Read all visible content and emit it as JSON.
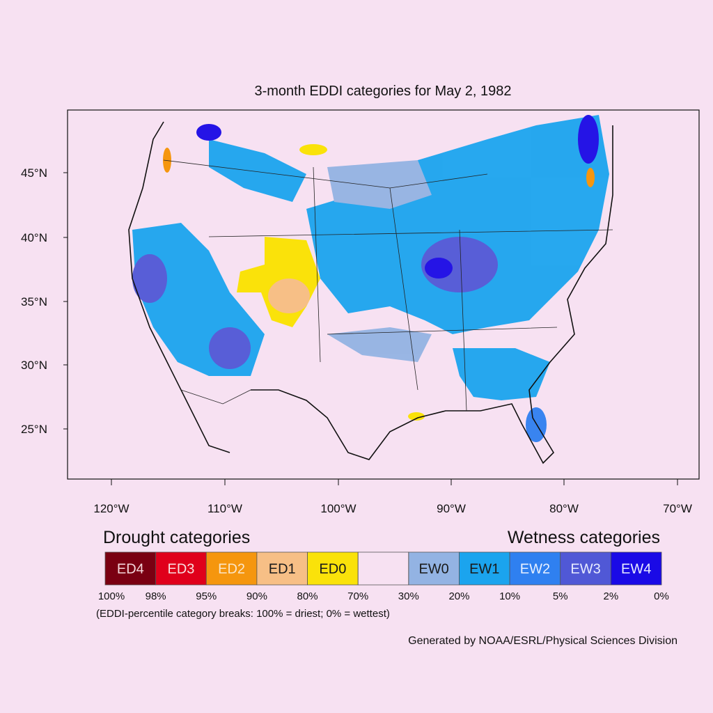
{
  "title": "3-month EDDI categories for May 2, 1982",
  "y_axis": {
    "ticks": [
      "45°N",
      "40°N",
      "35°N",
      "30°N",
      "25°N"
    ]
  },
  "x_axis": {
    "ticks": [
      "120°W",
      "110°W",
      "100°W",
      "90°W",
      "80°W",
      "70°W"
    ]
  },
  "legend": {
    "drought_title": "Drought categories",
    "wetness_title": "Wetness categories",
    "categories": [
      {
        "label": "ED4",
        "color": "#7a0012",
        "text_color": "#f4d8dc"
      },
      {
        "label": "ED3",
        "color": "#e0001b",
        "text_color": "#f8e0e0"
      },
      {
        "label": "ED2",
        "color": "#f5960e",
        "text_color": "#fbe6c8"
      },
      {
        "label": "ED1",
        "color": "#f7bf86",
        "text_color": "#1a1a1a"
      },
      {
        "label": "ED0",
        "color": "#fae20a",
        "text_color": "#1a1a1a"
      },
      {
        "label": "EW0",
        "color": "#93b3e3",
        "text_color": "#1a1a1a"
      },
      {
        "label": "EW1",
        "color": "#1ba4ee",
        "text_color": "#1a1a1a"
      },
      {
        "label": "EW2",
        "color": "#2f80f0",
        "text_color": "#e8f0ff"
      },
      {
        "label": "EW3",
        "color": "#5058d6",
        "text_color": "#e8ecff"
      },
      {
        "label": "EW4",
        "color": "#1a0ae6",
        "text_color": "#e8ecff"
      }
    ],
    "breaks": [
      "100%",
      "98%",
      "95%",
      "90%",
      "80%",
      "70%",
      "30%",
      "20%",
      "10%",
      "5%",
      "2%",
      "0%"
    ],
    "note": "(EDDI-percentile category breaks: 100% = driest; 0% = wettest)"
  },
  "credit": "Generated by NOAA/ESRL/Physical Sciences Division"
}
